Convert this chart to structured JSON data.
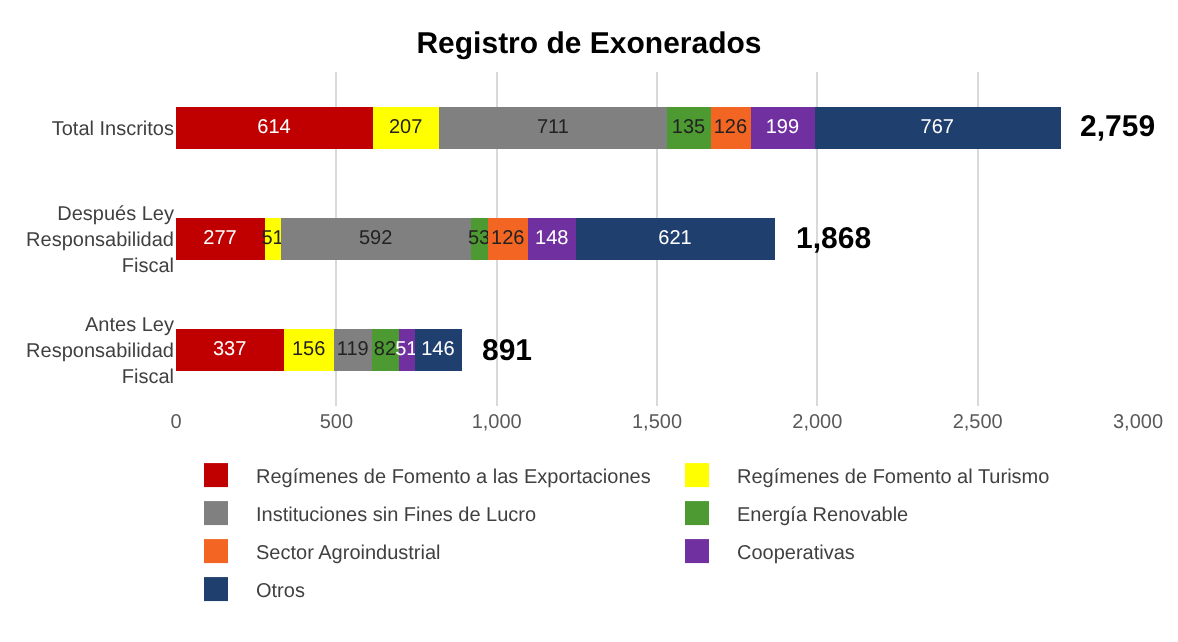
{
  "chart_data": {
    "type": "bar",
    "orientation": "horizontal",
    "stacked": true,
    "title": "Registro de Exonerados",
    "categories": [
      "Total Inscritos",
      "Después Ley Responsabilidad Fiscal",
      "Antes Ley Responsabilidad Fiscal"
    ],
    "series": [
      {
        "name": "Regímenes de Fomento a las Exportaciones",
        "color": "#c00000",
        "values": [
          614,
          277,
          337
        ]
      },
      {
        "name": "Regímenes de Fomento al Turismo",
        "color": "#ffff00",
        "values": [
          207,
          51,
          156
        ]
      },
      {
        "name": "Instituciones sin Fines de Lucro",
        "color": "#808080",
        "values": [
          711,
          592,
          119
        ]
      },
      {
        "name": "Energía Renovable",
        "color": "#4e9a32",
        "values": [
          135,
          53,
          82
        ]
      },
      {
        "name": "Sector Agroindustrial",
        "color": "#f26522",
        "values": [
          126,
          126,
          null
        ]
      },
      {
        "name": "Cooperativas",
        "color": "#7030a0",
        "values": [
          199,
          148,
          51
        ]
      },
      {
        "name": "Otros",
        "color": "#1f3f6e",
        "values": [
          767,
          621,
          146
        ]
      }
    ],
    "totals": [
      "2,759",
      "1,868",
      "891"
    ],
    "xlim": [
      0,
      3000
    ],
    "xticks": [
      0,
      {
        "value": 500,
        "label": "500"
      },
      {
        "value": 1000,
        "label": "1,000"
      },
      {
        "value": 1500,
        "label": "1,500"
      },
      {
        "value": 2000,
        "label": "2,000"
      },
      {
        "value": 2500,
        "label": "2,500"
      },
      {
        "value": 3000,
        "label": "3,000"
      }
    ],
    "grid": "x",
    "legend": "bottom",
    "data_labels": true
  }
}
